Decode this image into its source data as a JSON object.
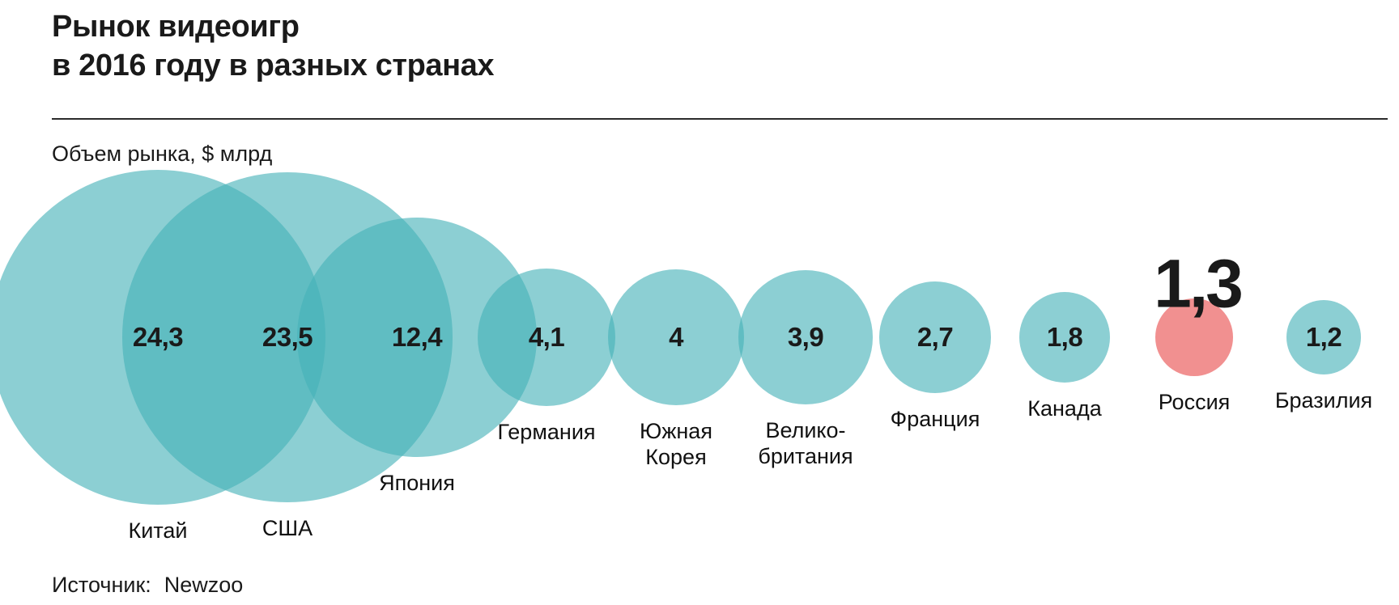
{
  "header": {
    "title_line1": "Рынок видеоигр",
    "title_line2": "в 2016 году в разных странах"
  },
  "chart_data": {
    "type": "bubble",
    "title": "Рынок видеоигр в 2016 году в разных странах",
    "unit_label": "Объем рынка, $ млрд",
    "unit": "$ млрд",
    "source": {
      "label": "Источник:",
      "value": "Newzoo"
    },
    "categories": [
      "Китай",
      "США",
      "Япония",
      "Германия",
      "Южная\nКорея",
      "Велико-\nбритания",
      "Франция",
      "Канада",
      "Россия",
      "Бразилия"
    ],
    "slugs": [
      "china",
      "usa",
      "japan",
      "germany",
      "south-korea",
      "great-britain",
      "france",
      "canada",
      "russia",
      "brazil"
    ],
    "values": [
      24.3,
      23.5,
      12.4,
      4.1,
      4,
      3.9,
      2.7,
      1.8,
      1.3,
      1.2
    ],
    "value_labels": [
      "24,3",
      "23,5",
      "12,4",
      "4,1",
      "4",
      "3,9",
      "2,7",
      "1,8",
      "1,3",
      "1,2"
    ],
    "highlight_index": 8,
    "highlight_country": "Россия",
    "colors": {
      "bubble_fill": "#45b1b8",
      "bubble_opacity": 0.62,
      "highlight_fill": "#f19090",
      "text": "#1a1a1a"
    },
    "legend_position": "none",
    "grid": false
  }
}
